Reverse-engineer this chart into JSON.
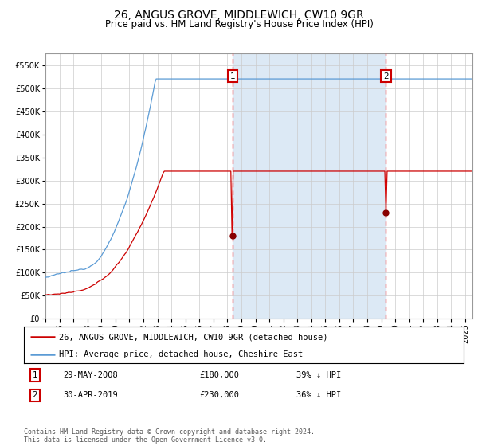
{
  "title": "26, ANGUS GROVE, MIDDLEWICH, CW10 9GR",
  "subtitle": "Price paid vs. HM Land Registry's House Price Index (HPI)",
  "ylim": [
    0,
    575000
  ],
  "yticks": [
    0,
    50000,
    100000,
    150000,
    200000,
    250000,
    300000,
    350000,
    400000,
    450000,
    500000,
    550000
  ],
  "xlim": [
    1995.0,
    2025.5
  ],
  "hpi_color": "#5b9bd5",
  "hpi_fill_color": "#dce9f5",
  "price_color": "#cc0000",
  "dot_color": "#880000",
  "vline_color": "#ff3333",
  "annotation_box_color": "#cc0000",
  "sale1_price": 180000,
  "sale2_price": 230000,
  "sale1_year": 2008.375,
  "sale2_year": 2019.33,
  "sale1_date_str": "29-MAY-2008",
  "sale2_date_str": "30-APR-2019",
  "sale1_hpi_pct": "39%",
  "sale2_hpi_pct": "36%",
  "legend_line1": "26, ANGUS GROVE, MIDDLEWICH, CW10 9GR (detached house)",
  "legend_line2": "HPI: Average price, detached house, Cheshire East",
  "footer_text": "Contains HM Land Registry data © Crown copyright and database right 2024.\nThis data is licensed under the Open Government Licence v3.0.",
  "plot_bg_color": "#ffffff",
  "grid_color": "#cccccc",
  "title_fontsize": 10,
  "subtitle_fontsize": 8.5,
  "tick_fontsize": 7,
  "legend_fontsize": 7.5,
  "table_fontsize": 7.5,
  "footer_fontsize": 6
}
